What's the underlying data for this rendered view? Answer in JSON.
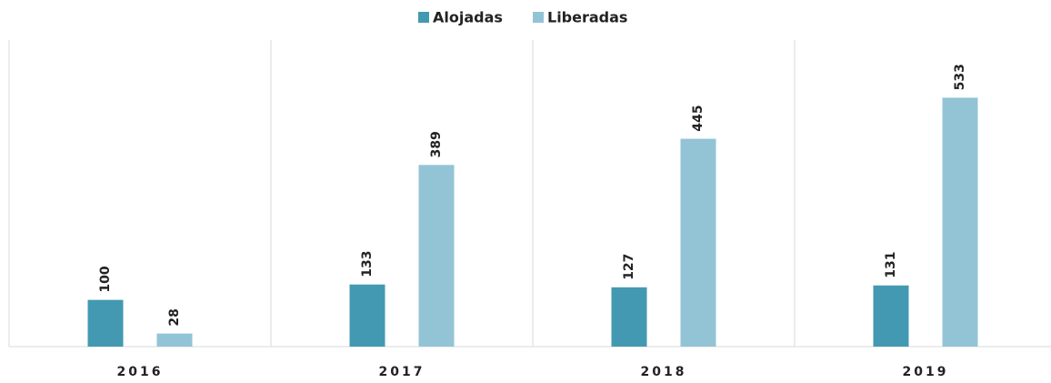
{
  "chart_data": {
    "type": "bar",
    "categories": [
      "2016",
      "2017",
      "2018",
      "2019"
    ],
    "series": [
      {
        "name": "Alojadas",
        "color": "#4399b1",
        "values": [
          100,
          133,
          127,
          131
        ]
      },
      {
        "name": "Liberadas",
        "color": "#92c4d6",
        "values": [
          28,
          389,
          445,
          533
        ]
      }
    ],
    "ylim": [
      0,
      600
    ],
    "legend": "top"
  }
}
